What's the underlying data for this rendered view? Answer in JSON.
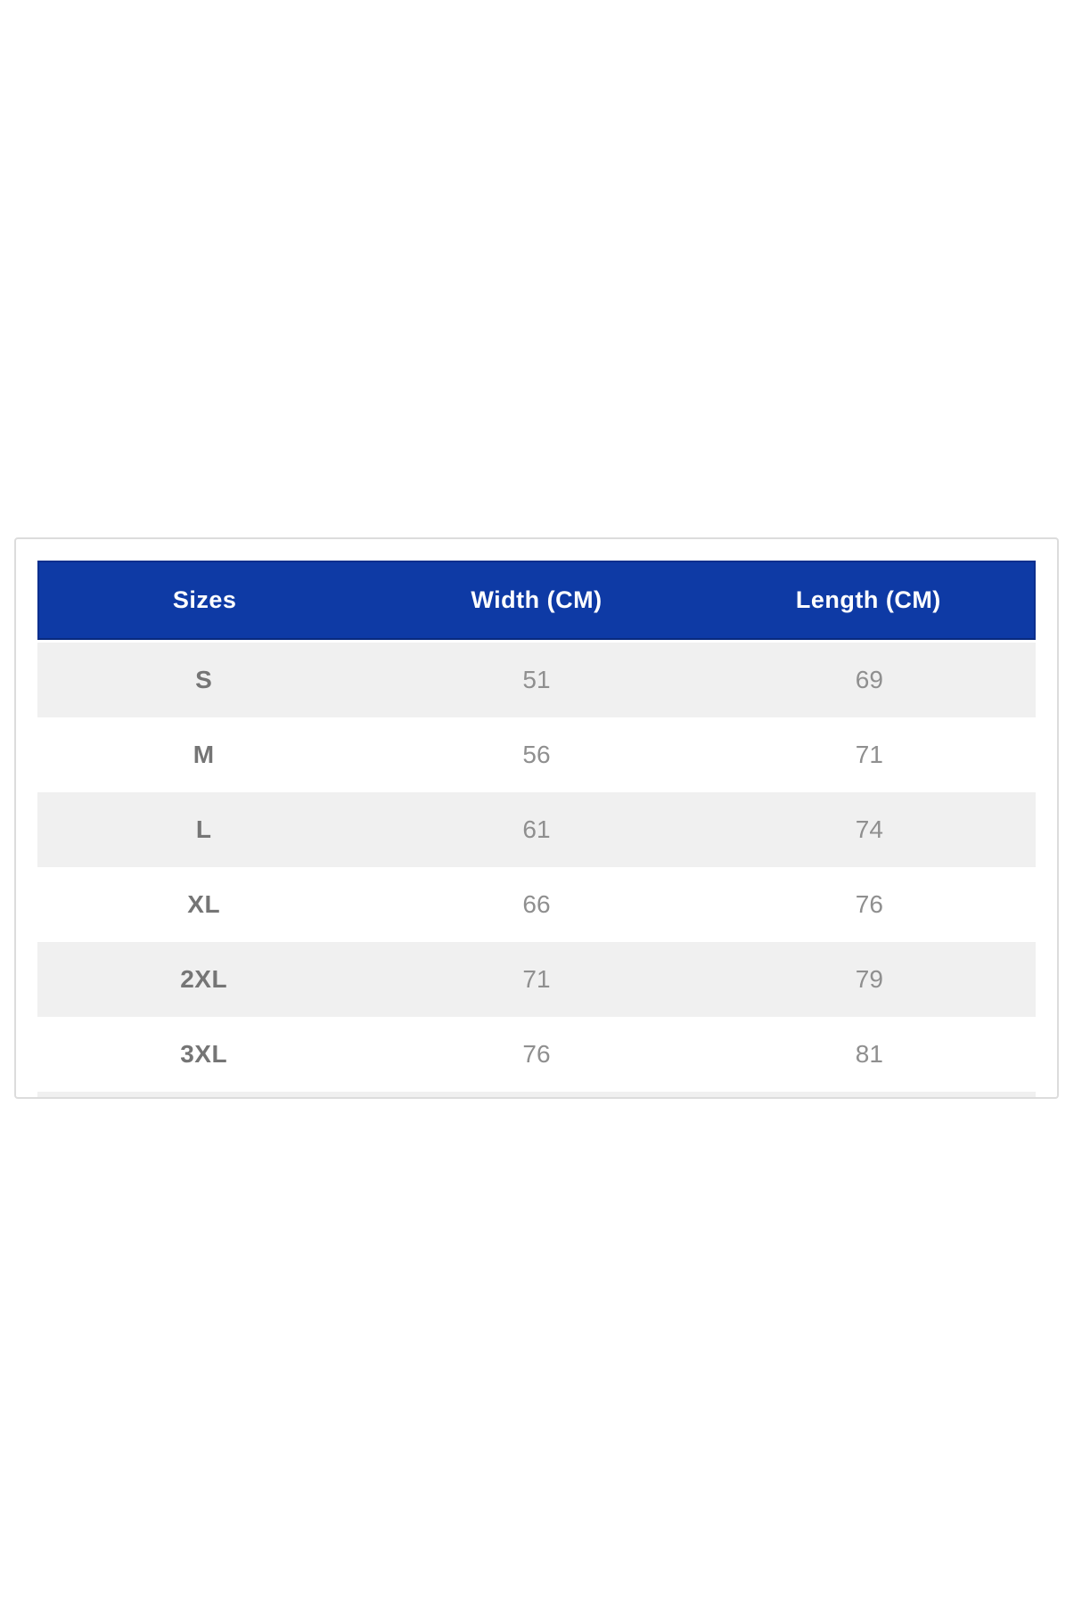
{
  "table": {
    "columns": [
      "Sizes",
      "Width (CM)",
      "Length (CM)"
    ],
    "rows": [
      {
        "size": "S",
        "width": "51",
        "length": "69"
      },
      {
        "size": "M",
        "width": "56",
        "length": "71"
      },
      {
        "size": "L",
        "width": "61",
        "length": "74"
      },
      {
        "size": "XL",
        "width": "66",
        "length": "76"
      },
      {
        "size": "2XL",
        "width": "71",
        "length": "79"
      },
      {
        "size": "3XL",
        "width": "76",
        "length": "81"
      }
    ]
  },
  "colors": {
    "header_bg": "#0e3aa5",
    "header_border": "#0c2f8e",
    "header_text": "#ffffff",
    "row_alt_bg": "#f0f0f0",
    "row_bg": "#ffffff",
    "size_label_text": "#757575",
    "value_text": "#8f8f8f",
    "panel_border": "#dcdcdc",
    "page_bg": "#ffffff"
  }
}
